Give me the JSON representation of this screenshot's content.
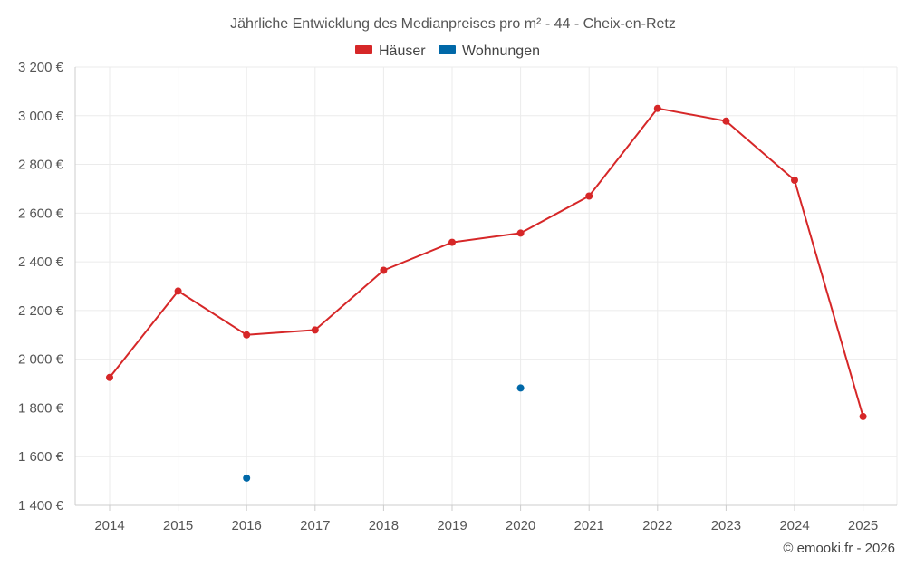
{
  "chart_data": {
    "type": "line",
    "title": "Jährliche Entwicklung des Medianpreises pro m² - 44 - Cheix-en-Retz",
    "xlabel": "",
    "ylabel": "",
    "categories": [
      "2014",
      "2015",
      "2016",
      "2017",
      "2018",
      "2019",
      "2020",
      "2021",
      "2022",
      "2023",
      "2024",
      "2025"
    ],
    "ylim": [
      1400,
      3200
    ],
    "yticks": [
      1400,
      1600,
      1800,
      2000,
      2200,
      2400,
      2600,
      2800,
      3000,
      3200
    ],
    "ytick_labels": [
      "1 400 €",
      "1 600 €",
      "1 800 €",
      "2 000 €",
      "2 200 €",
      "2 400 €",
      "2 600 €",
      "2 800 €",
      "3 000 €",
      "3 200 €"
    ],
    "grid": true,
    "legend_position": "top-center",
    "series": [
      {
        "name": "Häuser",
        "color": "#d62728",
        "values": [
          1925,
          2280,
          2100,
          2120,
          2365,
          2480,
          2518,
          2670,
          3030,
          2978,
          2735,
          1765
        ]
      },
      {
        "name": "Wohnungen",
        "color": "#0068a8",
        "values": [
          null,
          null,
          1512,
          null,
          null,
          null,
          1882,
          null,
          null,
          null,
          null,
          null
        ]
      }
    ],
    "credit": "© emooki.fr - 2026"
  }
}
